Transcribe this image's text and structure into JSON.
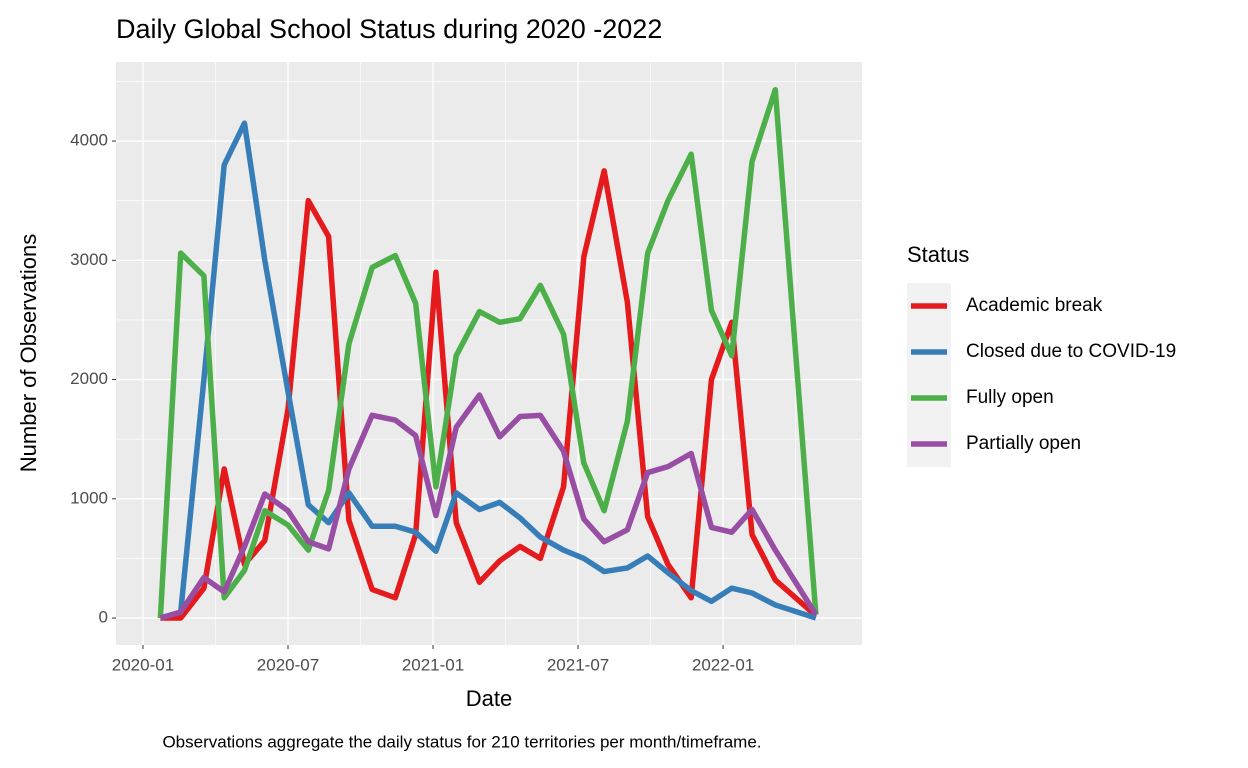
{
  "chart_data": {
    "type": "line",
    "title": "Daily Global School Status during 2020 -2022",
    "xlabel": "Date",
    "ylabel": "Number of Observations",
    "caption": "Observations aggregate the daily status for 210 territories per month/timeframe.",
    "legend_title": "Status",
    "legend": "right",
    "grid": true,
    "x": [
      2020.06,
      2020.13,
      2020.21,
      2020.28,
      2020.35,
      2020.42,
      2020.5,
      2020.57,
      2020.64,
      2020.71,
      2020.79,
      2020.87,
      2020.94,
      2021.01,
      2021.08,
      2021.16,
      2021.23,
      2021.3,
      2021.37,
      2021.45,
      2021.52,
      2021.59,
      2021.67,
      2021.74,
      2021.81,
      2021.89,
      2021.96,
      2022.03,
      2022.1,
      2022.18,
      2022.32
    ],
    "xlim": [
      2019.907,
      2022.479
    ],
    "xticks": [
      {
        "value": 2020,
        "label": "2020-01"
      },
      {
        "value": 2020.5,
        "label": "2020-07"
      },
      {
        "value": 2021,
        "label": "2021-01"
      },
      {
        "value": 2021.5,
        "label": "2021-07"
      },
      {
        "value": 2022,
        "label": "2022-01"
      }
    ],
    "ylim": [
      -226,
      4663
    ],
    "yticks": [
      0,
      1000,
      2000,
      3000,
      4000
    ],
    "series": [
      {
        "name": "Academic break",
        "color": "#e41a1c",
        "values": [
          0,
          0,
          250,
          1250,
          450,
          650,
          1750,
          3500,
          3200,
          820,
          240,
          170,
          700,
          2900,
          800,
          300,
          480,
          600,
          500,
          1100,
          3030,
          3750,
          2650,
          850,
          450,
          170,
          2000,
          2480,
          700,
          320,
          20
        ]
      },
      {
        "name": "Closed due to COVID-19",
        "color": "#377eb8",
        "values": [
          0,
          50,
          2000,
          3800,
          4150,
          3000,
          1900,
          950,
          800,
          1050,
          770,
          770,
          720,
          560,
          1050,
          910,
          970,
          840,
          680,
          570,
          500,
          390,
          420,
          520,
          380,
          230,
          140,
          250,
          210,
          110,
          0
        ]
      },
      {
        "name": "Fully open",
        "color": "#4daf4a",
        "values": [
          0,
          3060,
          2870,
          170,
          400,
          900,
          780,
          570,
          1070,
          2300,
          2940,
          3040,
          2640,
          1100,
          2200,
          2570,
          2480,
          2510,
          2790,
          2380,
          1300,
          900,
          1650,
          3060,
          3500,
          3890,
          2580,
          2200,
          3830,
          4430,
          30
        ]
      },
      {
        "name": "Partially open",
        "color": "#984ea3",
        "values": [
          0,
          50,
          340,
          220,
          600,
          1040,
          900,
          640,
          580,
          1250,
          1700,
          1660,
          1530,
          860,
          1600,
          1870,
          1520,
          1690,
          1700,
          1400,
          830,
          640,
          740,
          1220,
          1270,
          1380,
          760,
          720,
          910,
          570,
          30
        ]
      }
    ]
  }
}
